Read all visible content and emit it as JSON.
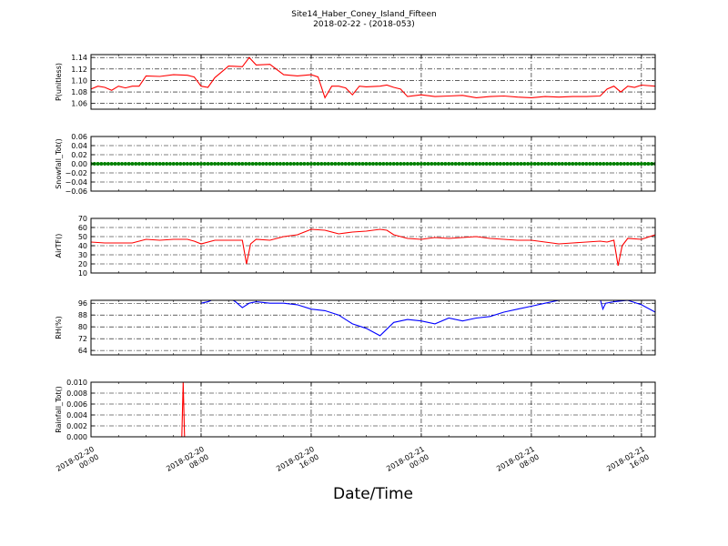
{
  "figure": {
    "title": "Site14_Haber_Coney_Island_Fifteen",
    "subtitle": "2018-02-22 - (2018-053)",
    "xlabel": "Date/Time"
  },
  "x_ticks": [
    {
      "hours": 0,
      "label_line1": "2018-02-20",
      "label_line2": "00:00"
    },
    {
      "hours": 8,
      "label_line1": "2018-02-20",
      "label_line2": "08:00"
    },
    {
      "hours": 16,
      "label_line1": "2018-02-20",
      "label_line2": "16:00"
    },
    {
      "hours": 24,
      "label_line1": "2018-02-21",
      "label_line2": "00:00"
    },
    {
      "hours": 32,
      "label_line1": "2018-02-21",
      "label_line2": "08:00"
    },
    {
      "hours": 40,
      "label_line1": "2018-02-21",
      "label_line2": "16:00"
    }
  ],
  "chart_data": [
    {
      "type": "line",
      "ylabel": "P(unitless)",
      "ylim": [
        1.05,
        1.145
      ],
      "yticks": [
        1.06,
        1.08,
        1.1,
        1.12,
        1.14
      ],
      "ytick_labels": [
        "1.06",
        "1.08",
        "1.10",
        "1.12",
        "1.14"
      ],
      "xlim_hours": [
        0,
        41
      ],
      "grid": true,
      "series": [
        {
          "color": "#ff0000",
          "points": [
            [
              0,
              1.085
            ],
            [
              0.5,
              1.09
            ],
            [
              1,
              1.088
            ],
            [
              1.5,
              1.083
            ],
            [
              2,
              1.09
            ],
            [
              2.5,
              1.087
            ],
            [
              3,
              1.09
            ],
            [
              3.5,
              1.09
            ],
            [
              4,
              1.108
            ],
            [
              5,
              1.107
            ],
            [
              6,
              1.11
            ],
            [
              7,
              1.109
            ],
            [
              7.5,
              1.106
            ],
            [
              8,
              1.09
            ],
            [
              8.5,
              1.088
            ],
            [
              9,
              1.105
            ],
            [
              9.5,
              1.115
            ],
            [
              10,
              1.125
            ],
            [
              11,
              1.124
            ],
            [
              11.5,
              1.14
            ],
            [
              12,
              1.127
            ],
            [
              13,
              1.128
            ],
            [
              14,
              1.11
            ],
            [
              15,
              1.108
            ],
            [
              16,
              1.11
            ],
            [
              16.5,
              1.106
            ],
            [
              17,
              1.07
            ],
            [
              17.5,
              1.09
            ],
            [
              18,
              1.09
            ],
            [
              18.5,
              1.087
            ],
            [
              19,
              1.075
            ],
            [
              19.5,
              1.09
            ],
            [
              20,
              1.089
            ],
            [
              21,
              1.09
            ],
            [
              21.5,
              1.092
            ],
            [
              22,
              1.088
            ],
            [
              22.5,
              1.085
            ],
            [
              23,
              1.072
            ],
            [
              24,
              1.075
            ],
            [
              25,
              1.072
            ],
            [
              26,
              1.073
            ],
            [
              27,
              1.074
            ],
            [
              28,
              1.07
            ],
            [
              29,
              1.072
            ],
            [
              30,
              1.073
            ],
            [
              31,
              1.071
            ],
            [
              32,
              1.07
            ],
            [
              33,
              1.072
            ],
            [
              34,
              1.071
            ],
            [
              35,
              1.072
            ],
            [
              36,
              1.072
            ],
            [
              37,
              1.073
            ],
            [
              37.5,
              1.085
            ],
            [
              38,
              1.09
            ],
            [
              38.5,
              1.08
            ],
            [
              39,
              1.09
            ],
            [
              39.5,
              1.088
            ],
            [
              40,
              1.092
            ],
            [
              41,
              1.09
            ],
            [
              42,
              1.09
            ],
            [
              43,
              1.088
            ],
            [
              43.5,
              1.07
            ],
            [
              44,
              1.073
            ],
            [
              44.5,
              1.062
            ],
            [
              45,
              1.09
            ],
            [
              45.5,
              1.08
            ],
            [
              46,
              1.088
            ],
            [
              46.5,
              1.085
            ]
          ]
        }
      ]
    },
    {
      "type": "scatter",
      "ylabel": "Snowfall_Tot()",
      "ylim": [
        -0.06,
        0.06
      ],
      "yticks": [
        -0.06,
        -0.04,
        -0.02,
        0.0,
        0.02,
        0.04,
        0.06
      ],
      "ytick_labels": [
        "−0.06",
        "−0.04",
        "−0.02",
        "0.00",
        "0.02",
        "0.04",
        "0.06"
      ],
      "grid": true,
      "series": [
        {
          "color": "#008000",
          "constant_value": 0.0,
          "step_hours": 0.25
        }
      ]
    },
    {
      "type": "line",
      "ylabel": "AirTF()",
      "ylim": [
        10,
        70
      ],
      "yticks": [
        10,
        20,
        30,
        40,
        50,
        60,
        70
      ],
      "ytick_labels": [
        "10",
        "20",
        "30",
        "40",
        "50",
        "60",
        "70"
      ],
      "grid": true,
      "series": [
        {
          "color": "#ff0000",
          "points": [
            [
              0,
              44
            ],
            [
              1,
              43
            ],
            [
              2,
              43
            ],
            [
              3,
              43
            ],
            [
              4,
              47
            ],
            [
              5,
              46
            ],
            [
              6,
              47
            ],
            [
              7,
              47
            ],
            [
              7.5,
              45
            ],
            [
              8,
              42
            ],
            [
              9,
              46
            ],
            [
              10,
              46
            ],
            [
              11,
              46
            ],
            [
              11.3,
              20
            ],
            [
              11.6,
              42
            ],
            [
              12,
              47
            ],
            [
              13,
              46
            ],
            [
              14,
              50
            ],
            [
              15,
              52
            ],
            [
              16,
              58
            ],
            [
              17,
              57
            ],
            [
              18,
              53
            ],
            [
              19,
              55
            ],
            [
              20,
              56
            ],
            [
              21,
              58
            ],
            [
              21.5,
              57
            ],
            [
              22,
              52
            ],
            [
              23,
              48
            ],
            [
              24,
              47
            ],
            [
              25,
              49
            ],
            [
              26,
              48
            ],
            [
              27,
              49
            ],
            [
              28,
              50
            ],
            [
              29,
              48
            ],
            [
              30,
              47
            ],
            [
              31,
              46
            ],
            [
              32,
              46
            ],
            [
              33,
              44
            ],
            [
              34,
              42
            ],
            [
              35,
              43
            ],
            [
              36,
              44
            ],
            [
              37,
              45
            ],
            [
              37.5,
              44
            ],
            [
              38,
              46
            ],
            [
              38.3,
              18
            ],
            [
              38.6,
              40
            ],
            [
              39,
              48
            ],
            [
              40,
              47
            ],
            [
              41,
              52
            ],
            [
              42,
              60
            ],
            [
              42.5,
              57
            ],
            [
              43,
              58
            ],
            [
              43.5,
              56
            ],
            [
              44,
              60
            ],
            [
              44.5,
              59
            ],
            [
              45,
              64
            ],
            [
              45.5,
              60
            ],
            [
              46,
              67
            ],
            [
              46.5,
              65
            ]
          ]
        }
      ]
    },
    {
      "type": "line",
      "ylabel": "RH(%)",
      "ylim": [
        61,
        98
      ],
      "yticks": [
        64,
        72,
        80,
        88,
        96
      ],
      "ytick_labels": [
        "64",
        "72",
        "80",
        "88",
        "96"
      ],
      "grid": true,
      "series": [
        {
          "color": "#0000ff",
          "points": [
            [
              8,
              96
            ],
            [
              8.5,
              97
            ],
            [
              9,
              99
            ],
            [
              10,
              100
            ],
            [
              10.5,
              97
            ],
            [
              11,
              93
            ],
            [
              11.5,
              96
            ],
            [
              12,
              97
            ],
            [
              13,
              96
            ],
            [
              14,
              96
            ],
            [
              15,
              95
            ],
            [
              16,
              92
            ],
            [
              17,
              91
            ],
            [
              18,
              88
            ],
            [
              19,
              82
            ],
            [
              20,
              79
            ],
            [
              21,
              74
            ],
            [
              22,
              83
            ],
            [
              23,
              85
            ],
            [
              24,
              84
            ],
            [
              25,
              82
            ],
            [
              26,
              86
            ],
            [
              27,
              84
            ],
            [
              28,
              86
            ],
            [
              29,
              87
            ],
            [
              30,
              90
            ],
            [
              31,
              92
            ],
            [
              32,
              94
            ],
            [
              33,
              96
            ],
            [
              34,
              98
            ],
            [
              35,
              99
            ],
            [
              37,
              99
            ],
            [
              37.2,
              92
            ],
            [
              37.4,
              96
            ],
            [
              38,
              97
            ],
            [
              39,
              98
            ],
            [
              40,
              95
            ],
            [
              41,
              90
            ],
            [
              42,
              82
            ],
            [
              43,
              74
            ],
            [
              44,
              68
            ],
            [
              45,
              65
            ],
            [
              46,
              70
            ],
            [
              47,
              64
            ],
            [
              48,
              63
            ]
          ]
        }
      ]
    },
    {
      "type": "line",
      "ylabel": "Rainfall_Tot()",
      "ylim": [
        0,
        0.01
      ],
      "yticks": [
        0.0,
        0.002,
        0.004,
        0.006,
        0.008,
        0.01
      ],
      "ytick_labels": [
        "0.000",
        "0.002",
        "0.004",
        "0.006",
        "0.008",
        "0.010"
      ],
      "grid": true,
      "series": [
        {
          "color": "#ff0000",
          "points": [
            [
              0,
              0
            ],
            [
              6.6,
              0
            ],
            [
              6.7,
              0.01
            ],
            [
              6.8,
              0
            ],
            [
              41,
              0
            ]
          ]
        }
      ]
    }
  ]
}
